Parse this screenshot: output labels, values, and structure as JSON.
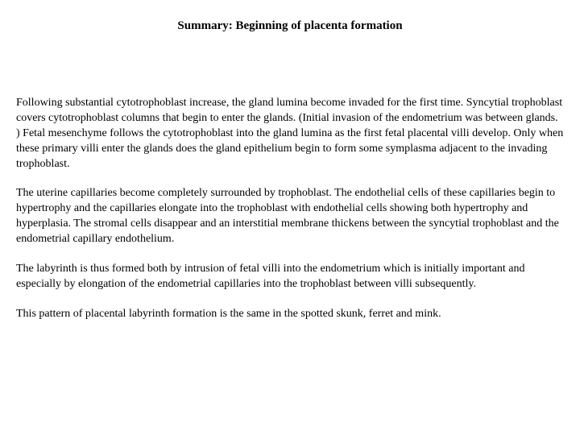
{
  "document": {
    "title": "Summary: Beginning of placenta formation",
    "title_fontsize": 15,
    "title_fontweight": "bold",
    "body_fontsize": 14,
    "font_family": "Times New Roman",
    "text_color": "#000000",
    "background_color": "#ffffff",
    "paragraphs": [
      "Following substantial cytotrophoblast increase, the gland lumina become invaded for the first time. Syncytial trophoblast covers cytotrophoblast columns that begin to enter the glands. (Initial invasion of the endometrium was between glands. ) Fetal mesenchyme follows the cytotrophoblast into the gland lumina as the first fetal placental villi develop. Only when these primary villi enter the glands does the gland epithelium begin to form some symplasma adjacent to the invading trophoblast.",
      "The uterine capillaries become completely surrounded by trophoblast. The endothelial cells of these capillaries begin to hypertrophy and the capillaries elongate into the trophoblast with endothelial cells showing both hypertrophy and hyperplasia. The stromal cells disappear and an interstitial membrane thickens between the syncytial trophoblast and the endometrial capillary endothelium.",
      "The labyrinth is thus formed both by intrusion of fetal villi into the endometrium which is initially important and especially by elongation of the endometrial capillaries into the trophoblast between villi subsequently.",
      "This pattern of placental labyrinth formation is the same in the spotted skunk, ferret and mink."
    ]
  }
}
